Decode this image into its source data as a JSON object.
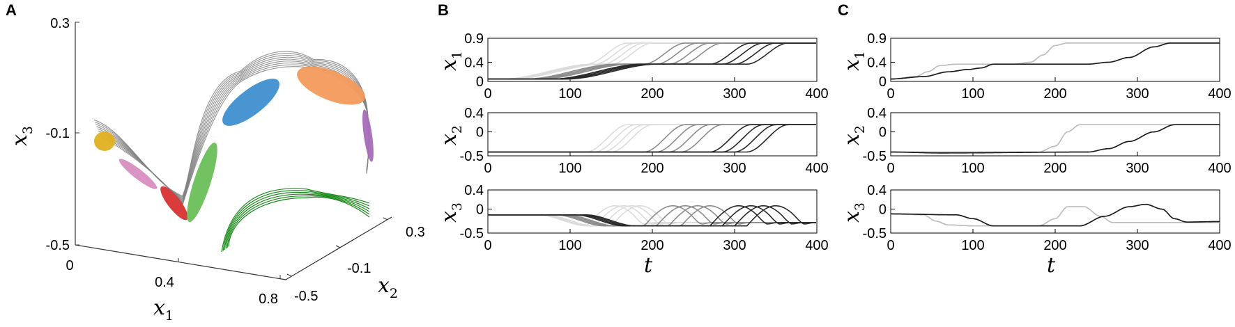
{
  "panel_letters": [
    "A",
    "B",
    "C"
  ],
  "chart_data": [
    {
      "panel": "A",
      "type": "line",
      "title": "",
      "axes": {
        "x1": {
          "label": "x",
          "sub": "1",
          "ticks": [
            "0",
            "0.4",
            "0.8"
          ]
        },
        "x2": {
          "label": "x",
          "sub": "2",
          "ticks": [
            "-0.5",
            "-0.1",
            "0.3"
          ]
        },
        "x3": {
          "label": "x",
          "sub": "3",
          "ticks": [
            "0.3",
            "-0.1",
            "-0.5"
          ]
        }
      },
      "ellipsoid_colors": [
        "#e0b020",
        "#d88ec0",
        "#d83030",
        "#6cbf5a",
        "#3f8fd0",
        "#f39a5c",
        "#a66bb8"
      ],
      "projection_color": "#1a8a1a",
      "trajectory_color": "#808080"
    },
    {
      "panel": "B",
      "type": "line",
      "xlabel": "t",
      "xlim": [
        0,
        400
      ],
      "xticks": [
        "0",
        "100",
        "200",
        "300",
        "400"
      ],
      "rows": [
        {
          "ylabel": "x",
          "sub": "1",
          "ylim": [
            0,
            0.9
          ],
          "yticks": [
            "0.9",
            "0.4",
            "0"
          ]
        },
        {
          "ylabel": "x",
          "sub": "2",
          "ylim": [
            -0.5,
            0.4
          ],
          "yticks": [
            "0.4",
            "0",
            "-0.5"
          ]
        },
        {
          "ylabel": "x",
          "sub": "3",
          "ylim": [
            -0.5,
            0.4
          ],
          "yticks": [
            "0.4",
            "0",
            "-0.5"
          ]
        }
      ],
      "groups": [
        {
          "color": "#dcdcdc",
          "shifts": [
            -30,
            -20,
            -10,
            0
          ]
        },
        {
          "color": "#8c8c8c",
          "shifts": [
            40,
            55,
            70,
            85
          ]
        },
        {
          "color": "#2a2a2a",
          "shifts": [
            120,
            135,
            150,
            165
          ]
        }
      ],
      "series_levels": {
        "x1": [
          0.05,
          0.36,
          0.8
        ],
        "x2": [
          -0.42,
          -0.42,
          0.15
        ],
        "x3": [
          -0.12,
          -0.35,
          -0.28
        ]
      }
    },
    {
      "panel": "C",
      "type": "line",
      "xlabel": "t",
      "xlim": [
        0,
        400
      ],
      "xticks": [
        "0",
        "100",
        "200",
        "300",
        "400"
      ],
      "rows": [
        {
          "ylabel": "x",
          "sub": "1",
          "ylim": [
            0,
            0.9
          ],
          "yticks": [
            "0.9",
            "0.4",
            "0"
          ]
        },
        {
          "ylabel": "x",
          "sub": "2",
          "ylim": [
            -0.5,
            0.4
          ],
          "yticks": [
            "0.4",
            "0",
            "-0.5"
          ]
        },
        {
          "ylabel": "x",
          "sub": "3",
          "ylim": [
            -0.5,
            0.4
          ],
          "yticks": [
            "0.4",
            "0",
            "-0.5"
          ]
        }
      ],
      "series": [
        {
          "color": "#bdbdbd",
          "x1": [
            [
              0,
              0.05
            ],
            [
              30,
              0.1
            ],
            [
              45,
              0.2
            ],
            [
              60,
              0.33
            ],
            [
              80,
              0.36
            ],
            [
              150,
              0.36
            ],
            [
              170,
              0.4
            ],
            [
              185,
              0.55
            ],
            [
              200,
              0.75
            ],
            [
              215,
              0.8
            ],
            [
              400,
              0.8
            ]
          ],
          "x2": [
            [
              0,
              -0.42
            ],
            [
              180,
              -0.42
            ],
            [
              200,
              -0.3
            ],
            [
              215,
              0
            ],
            [
              230,
              0.15
            ],
            [
              400,
              0.15
            ]
          ],
          "x3": [
            [
              0,
              -0.1
            ],
            [
              40,
              -0.12
            ],
            [
              55,
              -0.25
            ],
            [
              70,
              -0.33
            ],
            [
              100,
              -0.35
            ],
            [
              180,
              -0.35
            ],
            [
              200,
              -0.2
            ],
            [
              215,
              0.05
            ],
            [
              235,
              0.05
            ],
            [
              255,
              -0.15
            ],
            [
              270,
              -0.28
            ],
            [
              400,
              -0.28
            ]
          ]
        },
        {
          "color": "#1c1c1c",
          "x1": [
            [
              0,
              0.05
            ],
            [
              40,
              0.1
            ],
            [
              70,
              0.2
            ],
            [
              95,
              0.25
            ],
            [
              110,
              0.28
            ],
            [
              125,
              0.36
            ],
            [
              240,
              0.36
            ],
            [
              265,
              0.4
            ],
            [
              290,
              0.5
            ],
            [
              320,
              0.72
            ],
            [
              340,
              0.8
            ],
            [
              400,
              0.8
            ]
          ],
          "x2": [
            [
              0,
              -0.42
            ],
            [
              60,
              -0.44
            ],
            [
              240,
              -0.42
            ],
            [
              265,
              -0.35
            ],
            [
              290,
              -0.2
            ],
            [
              320,
              0
            ],
            [
              345,
              0.15
            ],
            [
              400,
              0.15
            ]
          ],
          "x3": [
            [
              0,
              -0.1
            ],
            [
              80,
              -0.12
            ],
            [
              100,
              -0.2
            ],
            [
              125,
              -0.35
            ],
            [
              230,
              -0.35
            ],
            [
              260,
              -0.15
            ],
            [
              290,
              0.05
            ],
            [
              310,
              0.1
            ],
            [
              330,
              0
            ],
            [
              345,
              -0.2
            ],
            [
              360,
              -0.27
            ],
            [
              400,
              -0.26
            ]
          ]
        }
      ]
    }
  ]
}
